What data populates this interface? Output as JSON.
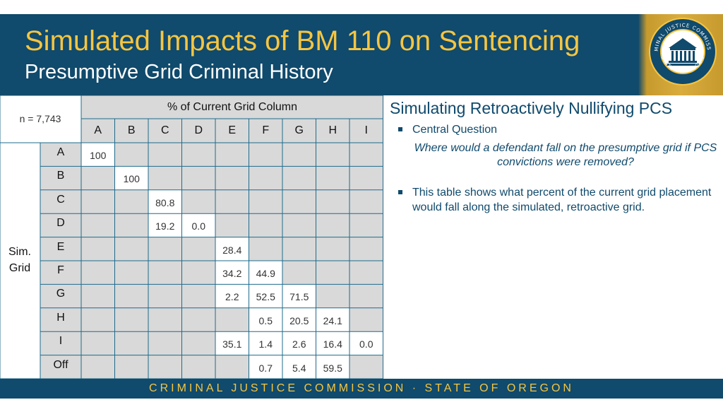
{
  "header": {
    "title": "Simulated Impacts of BM 110 on Sentencing",
    "subtitle": "Presumptive Grid Criminal History"
  },
  "seal": {
    "icon": "oregon-criminal-justice-commission-seal-icon"
  },
  "table": {
    "n_label": "n = 7,743",
    "column_header": "% of Current Grid Column",
    "row_group_label_line1": "Sim.",
    "row_group_label_line2": "Grid",
    "columns": [
      "A",
      "B",
      "C",
      "D",
      "E",
      "F",
      "G",
      "H",
      "I"
    ],
    "rows": [
      {
        "label": "A",
        "cells": [
          "100",
          "",
          "",
          "",
          "",
          "",
          "",
          "",
          ""
        ]
      },
      {
        "label": "B",
        "cells": [
          "",
          "100",
          "",
          "",
          "",
          "",
          "",
          "",
          ""
        ]
      },
      {
        "label": "C",
        "cells": [
          "",
          "",
          "80.8",
          "",
          "",
          "",
          "",
          "",
          ""
        ]
      },
      {
        "label": "D",
        "cells": [
          "",
          "",
          "19.2",
          "0.0",
          "",
          "",
          "",
          "",
          ""
        ]
      },
      {
        "label": "E",
        "cells": [
          "",
          "",
          "",
          "",
          "28.4",
          "",
          "",
          "",
          ""
        ]
      },
      {
        "label": "F",
        "cells": [
          "",
          "",
          "",
          "",
          "34.2",
          "44.9",
          "",
          "",
          ""
        ]
      },
      {
        "label": "G",
        "cells": [
          "",
          "",
          "",
          "",
          "2.2",
          "52.5",
          "71.5",
          "",
          ""
        ]
      },
      {
        "label": "H",
        "cells": [
          "",
          "",
          "",
          "",
          "",
          "0.5",
          "20.5",
          "24.1",
          ""
        ]
      },
      {
        "label": "I",
        "cells": [
          "",
          "",
          "",
          "",
          "35.1",
          "1.4",
          "2.6",
          "16.4",
          "0.0"
        ]
      },
      {
        "label": "Off",
        "cells": [
          "",
          "",
          "",
          "",
          "",
          "0.7",
          "5.4",
          "59.5",
          ""
        ]
      }
    ]
  },
  "right_panel": {
    "heading": "Simulating Retroactively Nullifying PCS",
    "bullet1": "Central Question",
    "question": "Where would a defendant fall on the presumptive grid if PCS convictions were removed?",
    "bullet2": "This table shows what percent of the current grid placement would fall along the simulated, retroactive grid."
  },
  "footer": {
    "text": "CRIMINAL JUSTICE COMMISSION · STATE OF OREGON"
  },
  "colors": {
    "navy": "#104a6c",
    "gold": "#f5c542",
    "cell_white": "#ffffff",
    "cell_gray": "#d9d9d9",
    "grid_line": "#1f6b8c"
  }
}
